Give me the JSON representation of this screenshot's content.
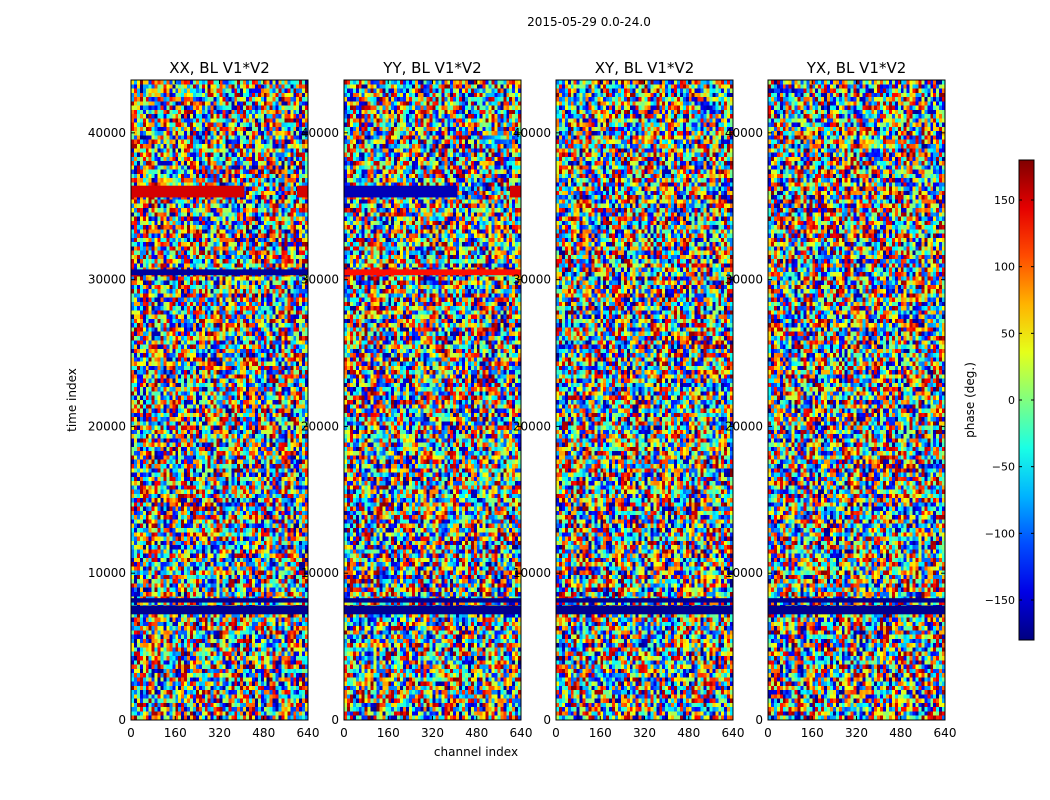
{
  "figure": {
    "suptitle": "2015-05-29 0.0-24.0"
  },
  "chart_data": {
    "type": "heatmap",
    "xlabel": "channel index",
    "ylabel": "time index",
    "xlim": [
      0,
      640
    ],
    "ylim": [
      0,
      43600
    ],
    "x_ticks": [
      0,
      160,
      320,
      480,
      640
    ],
    "y_ticks": [
      0,
      10000,
      20000,
      30000,
      40000
    ],
    "colormap": "jet",
    "colorbar": {
      "label": "phase (deg.)",
      "vmin": -180,
      "vmax": 180,
      "ticks": [
        150,
        100,
        50,
        0,
        -50,
        -100,
        -150
      ],
      "tick_labels": [
        "150",
        "100",
        "50",
        "0",
        "−50",
        "−100",
        "−150"
      ]
    },
    "panels": [
      {
        "title": "XX, BL V1*V2",
        "coherent_bands": [
          {
            "t0": 35600,
            "t1": 36400,
            "c0": 0,
            "c1": 410,
            "phase": 150
          },
          {
            "t0": 35600,
            "t1": 36400,
            "c0": 600,
            "c1": 640,
            "phase": 150
          },
          {
            "t0": 30300,
            "t1": 30700,
            "c0": 0,
            "c1": 640,
            "phase": -170
          },
          {
            "t0": 7200,
            "t1": 7800,
            "c0": 0,
            "c1": 640,
            "phase": -175
          },
          {
            "t0": 8000,
            "t1": 8300,
            "c0": 0,
            "c1": 640,
            "phase": -175
          }
        ]
      },
      {
        "title": "YY, BL V1*V2",
        "coherent_bands": [
          {
            "t0": 35600,
            "t1": 36400,
            "c0": 0,
            "c1": 410,
            "phase": -160
          },
          {
            "t0": 35600,
            "t1": 36400,
            "c0": 600,
            "c1": 640,
            "phase": 150
          },
          {
            "t0": 30300,
            "t1": 30700,
            "c0": 0,
            "c1": 640,
            "phase": 130
          },
          {
            "t0": 7200,
            "t1": 7800,
            "c0": 0,
            "c1": 640,
            "phase": -175
          },
          {
            "t0": 8000,
            "t1": 8300,
            "c0": 0,
            "c1": 640,
            "phase": -175
          }
        ]
      },
      {
        "title": "XY, BL V1*V2",
        "coherent_bands": [
          {
            "t0": 7200,
            "t1": 7800,
            "c0": 0,
            "c1": 640,
            "phase": -175
          },
          {
            "t0": 8000,
            "t1": 8300,
            "c0": 0,
            "c1": 640,
            "phase": -175
          }
        ]
      },
      {
        "title": "YX, BL V1*V2",
        "coherent_bands": [
          {
            "t0": 7200,
            "t1": 7800,
            "c0": 0,
            "c1": 640,
            "phase": -175
          },
          {
            "t0": 8000,
            "t1": 8300,
            "c0": 0,
            "c1": 640,
            "phase": -175
          }
        ]
      }
    ]
  }
}
